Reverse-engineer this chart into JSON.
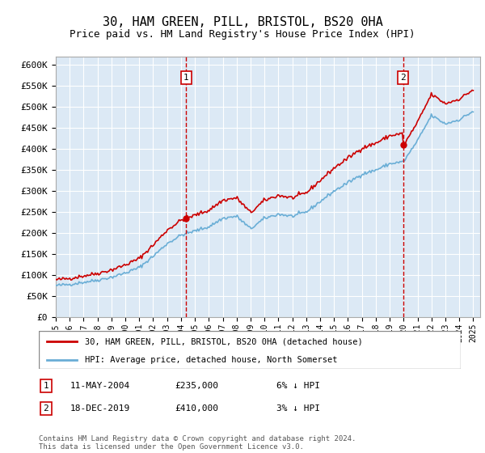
{
  "title": "30, HAM GREEN, PILL, BRISTOL, BS20 0HA",
  "subtitle": "Price paid vs. HM Land Registry's House Price Index (HPI)",
  "ylabel_ticks": [
    "£0",
    "£50K",
    "£100K",
    "£150K",
    "£200K",
    "£250K",
    "£300K",
    "£350K",
    "£400K",
    "£450K",
    "£500K",
    "£550K",
    "£600K"
  ],
  "ylim": [
    0,
    620000
  ],
  "ytick_vals": [
    0,
    50000,
    100000,
    150000,
    200000,
    250000,
    300000,
    350000,
    400000,
    450000,
    500000,
    550000,
    600000
  ],
  "x_start_year": 1995,
  "x_end_year": 2025,
  "purchase1_year": 2004.37,
  "purchase1_price": 235000,
  "purchase2_year": 2019.96,
  "purchase2_price": 410000,
  "bg_color": "#dce9f5",
  "hpi_line_color": "#6aaed6",
  "price_line_color": "#cc0000",
  "grid_color": "#ffffff",
  "legend_label1": "30, HAM GREEN, PILL, BRISTOL, BS20 0HA (detached house)",
  "legend_label2": "HPI: Average price, detached house, North Somerset",
  "annotation1_label": "1",
  "annotation1_date": "11-MAY-2004",
  "annotation1_price": "£235,000",
  "annotation1_note": "6% ↓ HPI",
  "annotation2_label": "2",
  "annotation2_date": "18-DEC-2019",
  "annotation2_price": "£410,000",
  "annotation2_note": "3% ↓ HPI",
  "footer": "Contains HM Land Registry data © Crown copyright and database right 2024.\nThis data is licensed under the Open Government Licence v3.0.",
  "hpi_anchors_years": [
    1995,
    1996,
    1997,
    1998,
    1999,
    2000,
    2001,
    2002,
    2003,
    2004,
    2005,
    2006,
    2007,
    2008,
    2009,
    2010,
    2011,
    2012,
    2013,
    2014,
    2015,
    2016,
    2017,
    2018,
    2019,
    2020,
    2021,
    2022,
    2023,
    2024,
    2025
  ],
  "hpi_anchors_vals": [
    75000,
    78000,
    83000,
    88000,
    95000,
    105000,
    118000,
    145000,
    175000,
    195000,
    205000,
    215000,
    235000,
    240000,
    210000,
    235000,
    245000,
    240000,
    250000,
    275000,
    300000,
    320000,
    340000,
    350000,
    365000,
    370000,
    420000,
    480000,
    460000,
    470000,
    490000
  ]
}
